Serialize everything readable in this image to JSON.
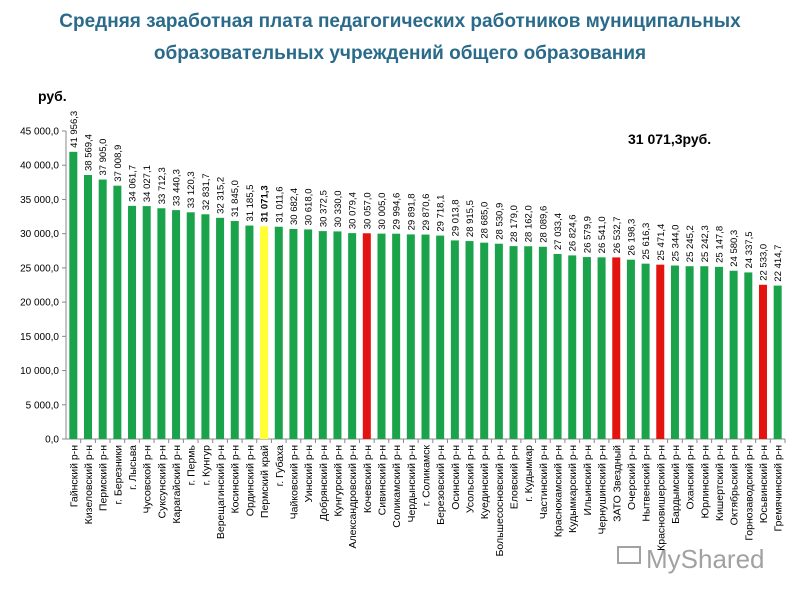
{
  "title_line1": "Средняя заработная плата педагогических работников муниципальных",
  "title_line2": "образовательных учреждений общего образования",
  "unit_label": "руб.",
  "average_annotation": "31 071,3руб.",
  "watermark": "MyShared",
  "colors": {
    "normal": "#1aa34a",
    "average": "#ffff33",
    "highlight": "#e3140f",
    "title": "#2a6a8a"
  },
  "chart_data": {
    "type": "bar",
    "ylim": [
      0,
      45000
    ],
    "yticks": [
      0,
      5000,
      10000,
      15000,
      20000,
      25000,
      30000,
      35000,
      40000,
      45000
    ],
    "ytick_labels": [
      "0,0",
      "5 000,0",
      "10 000,0",
      "15 000,0",
      "20 000,0",
      "25 000,0",
      "30 000,0",
      "35 000,0",
      "40 000,0",
      "45 000,0"
    ],
    "ylabel": "руб.",
    "grid": false,
    "categories": [
      "Гайнский р-н",
      "Кизеловский р-н",
      "Пермский р-н",
      "г. Березники",
      "г. Лысьва",
      "Чусовской р-н",
      "Суксунский р-н",
      "Карагайский р-н",
      "г. Пермь",
      "г. Кунгур",
      "Верещагинский р-н",
      "Косинский р-н",
      "Ординский р-н",
      "Пермский край",
      "г. Губаха",
      "Чайковский р-н",
      "Уинский р-н",
      "Добрянский р-н",
      "Кунгурский р-н",
      "Александровский р-н",
      "Кочевский р-н",
      "Сивинский р-н",
      "Соликамский р-н",
      "Чердынский р-н",
      "г. Соликамск",
      "Березовский р-н",
      "Осинский р-н",
      "Усольский р-н",
      "Куединский р-н",
      "Большесосновский р-н",
      "Еловский р-н",
      "г. Кудымкар",
      "Частинский р-н",
      "Краснокамский р-н",
      "Кудымкарский р-н",
      "Ильинский р-н",
      "Чернушинский р-н",
      "ЗАТО Звездный",
      "Очерский р-н",
      "Нытвенский р-н",
      "Красновишерский р-н",
      "Бардымский р-н",
      "Оханский р-н",
      "Юрлинский р-н",
      "Кишертский р-н",
      "Октябрьский р-н",
      "Горнозаводский р-н",
      "Юсьвинский р-н",
      "Гремячинский р-н"
    ],
    "values": [
      41956.3,
      38569.4,
      37905.0,
      37008.9,
      34061.7,
      34027.1,
      33712.3,
      33440.3,
      33120.3,
      32831.7,
      32315.2,
      31845.0,
      31185.5,
      31071.3,
      31011.6,
      30682.4,
      30618.0,
      30372.5,
      30330.0,
      30079.4,
      30057.0,
      30005.0,
      29994.6,
      29891.8,
      29870.6,
      29718.1,
      29013.8,
      28915.5,
      28685.0,
      28530.9,
      28179.0,
      28162.0,
      28089.6,
      27033.4,
      26824.6,
      26579.9,
      26541.0,
      26532.7,
      26198.3,
      25616.3,
      25471.4,
      25344.0,
      25245.2,
      25242.3,
      25147.8,
      24580.3,
      24337.5,
      22533.0,
      22414.7
    ],
    "value_labels": [
      "41 956,3",
      "38 569,4",
      "37 905,0",
      "37 008,9",
      "34 061,7",
      "34 027,1",
      "33 712,3",
      "33 440,3",
      "33 120,3",
      "32 831,7",
      "32 315,2",
      "31 845,0",
      "31 185,5",
      "31 071,3",
      "31 011,6",
      "30 682,4",
      "30 618,0",
      "30 372,5",
      "30 330,0",
      "30 079,4",
      "30 057,0",
      "30 005,0",
      "29 994,6",
      "29 891,8",
      "29 870,6",
      "29 718,1",
      "29 013,8",
      "28 915,5",
      "28 685,0",
      "28 530,9",
      "28 179,0",
      "28 162,0",
      "28 089,6",
      "27 033,4",
      "26 824,6",
      "26 579,9",
      "26 541,0",
      "26 532,7",
      "26 198,3",
      "25 616,3",
      "25 471,4",
      "25 344,0",
      "25 245,2",
      "25 242,3",
      "25 147,8",
      "24 580,3",
      "24 337,5",
      "22 533,0",
      "22 414,7"
    ],
    "bar_colors": {
      "average": [
        "Пермский край"
      ],
      "highlight": [
        "Кочевский р-н",
        "ЗАТО Звездный",
        "Красновишерский р-н",
        "Юсьвинский р-н"
      ]
    }
  }
}
